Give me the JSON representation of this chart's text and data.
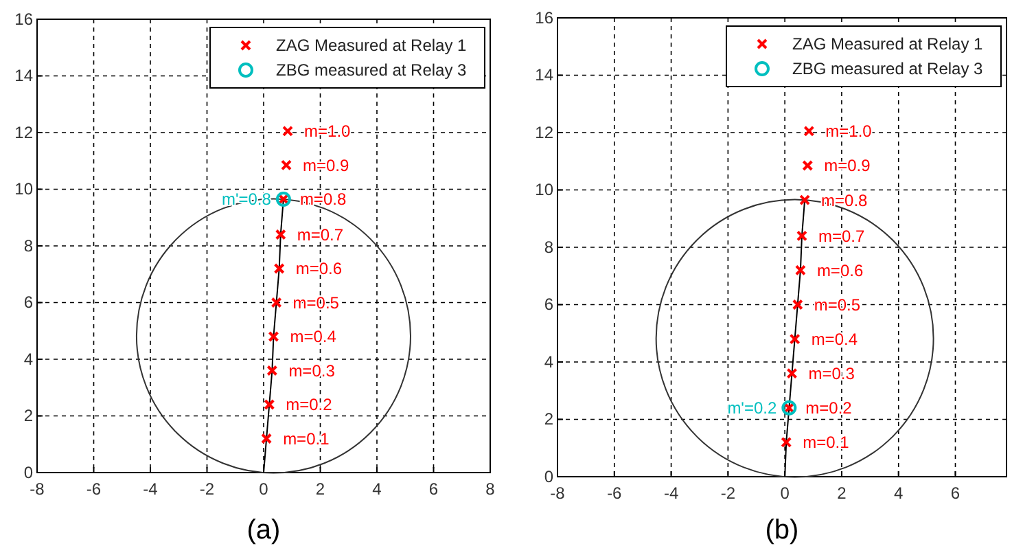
{
  "chart_data": [
    {
      "type": "scatter",
      "xlim": [
        -8,
        8
      ],
      "ylim": [
        0,
        16
      ],
      "xticks": [
        -8,
        -6,
        -4,
        -2,
        0,
        2,
        4,
        6,
        8
      ],
      "yticks": [
        0,
        2,
        4,
        6,
        8,
        10,
        12,
        14,
        16
      ],
      "grid": true,
      "legend": "top right",
      "annotations": [
        {
          "text": "m=0.1",
          "x": 0.1,
          "y": 1.2
        },
        {
          "text": "m=0.2",
          "x": 0.2,
          "y": 2.4
        },
        {
          "text": "m=0.3",
          "x": 0.3,
          "y": 3.6
        },
        {
          "text": "m=0.4",
          "x": 0.35,
          "y": 4.8
        },
        {
          "text": "m=0.5",
          "x": 0.45,
          "y": 6.0
        },
        {
          "text": "m=0.6",
          "x": 0.55,
          "y": 7.2
        },
        {
          "text": "m=0.7",
          "x": 0.6,
          "y": 8.4
        },
        {
          "text": "m=0.8",
          "x": 0.7,
          "y": 9.65
        },
        {
          "text": "m=0.9",
          "x": 0.8,
          "y": 10.85
        },
        {
          "text": "m=1.0",
          "x": 0.85,
          "y": 12.05
        },
        {
          "text": "m'=0.8",
          "x": 0.7,
          "y": 9.65
        },
        "(a)"
      ],
      "series": [
        {
          "type": "line",
          "color": "#000000",
          "x": [
            0,
            0.1,
            0.2,
            0.3,
            0.35,
            0.45,
            0.55,
            0.6,
            0.7
          ],
          "values": [
            0,
            1.2,
            2.4,
            3.6,
            4.8,
            6.0,
            7.2,
            8.4,
            9.65
          ]
        },
        {
          "name": "ZAG Measured at Relay 1",
          "color": "#ff0000",
          "marker": "cross",
          "x": [
            0.1,
            0.2,
            0.3,
            0.35,
            0.45,
            0.55,
            0.6,
            0.7,
            0.8,
            0.85
          ],
          "values": [
            1.2,
            2.4,
            3.6,
            4.8,
            6.0,
            7.2,
            8.4,
            9.65,
            10.85,
            12.05
          ]
        },
        {
          "name": "ZBG measured at Relay 3",
          "color": "#00bfbf",
          "marker": "circle",
          "x": [
            0.7
          ],
          "values": [
            9.65
          ]
        }
      ]
    },
    {
      "type": "scatter",
      "xlim": [
        -8,
        7.8
      ],
      "ylim": [
        0,
        16
      ],
      "xticks": [
        -8,
        -6,
        -4,
        -2,
        0,
        2,
        4,
        6
      ],
      "yticks": [
        0,
        2,
        4,
        6,
        8,
        10,
        12,
        14,
        16
      ],
      "grid": true,
      "legend": "top right",
      "annotations": [
        {
          "text": "m=0.1",
          "x": 0.05,
          "y": 1.2
        },
        {
          "text": "m=0.2",
          "x": 0.15,
          "y": 2.4
        },
        {
          "text": "m=0.3",
          "x": 0.25,
          "y": 3.6
        },
        {
          "text": "m=0.4",
          "x": 0.35,
          "y": 4.8
        },
        {
          "text": "m=0.5",
          "x": 0.45,
          "y": 6.0
        },
        {
          "text": "m=0.6",
          "x": 0.55,
          "y": 7.2
        },
        {
          "text": "m=0.7",
          "x": 0.6,
          "y": 8.4
        },
        {
          "text": "m=0.8",
          "x": 0.7,
          "y": 9.65
        },
        {
          "text": "m=0.9",
          "x": 0.8,
          "y": 10.85
        },
        {
          "text": "m=1.0",
          "x": 0.85,
          "y": 12.05
        },
        {
          "text": "m'=0.2",
          "x": 0.15,
          "y": 2.4
        },
        "(b)"
      ],
      "series": [
        {
          "type": "line",
          "color": "#000000",
          "x": [
            0,
            0.05,
            0.15,
            0.25,
            0.35,
            0.45,
            0.55,
            0.6,
            0.7
          ],
          "values": [
            0,
            1.2,
            2.4,
            3.6,
            4.8,
            6.0,
            7.2,
            8.4,
            9.65
          ]
        },
        {
          "name": "ZAG Measured at Relay 1",
          "color": "#ff0000",
          "marker": "cross",
          "x": [
            0.05,
            0.15,
            0.25,
            0.35,
            0.45,
            0.55,
            0.6,
            0.7,
            0.8,
            0.85
          ],
          "values": [
            1.2,
            2.4,
            3.6,
            4.8,
            6.0,
            7.2,
            8.4,
            9.65,
            10.85,
            12.05
          ]
        },
        {
          "name": "ZBG measured at Relay 3",
          "color": "#00bfbf",
          "marker": "circle",
          "x": [
            0.15
          ],
          "values": [
            2.4
          ]
        }
      ]
    }
  ]
}
